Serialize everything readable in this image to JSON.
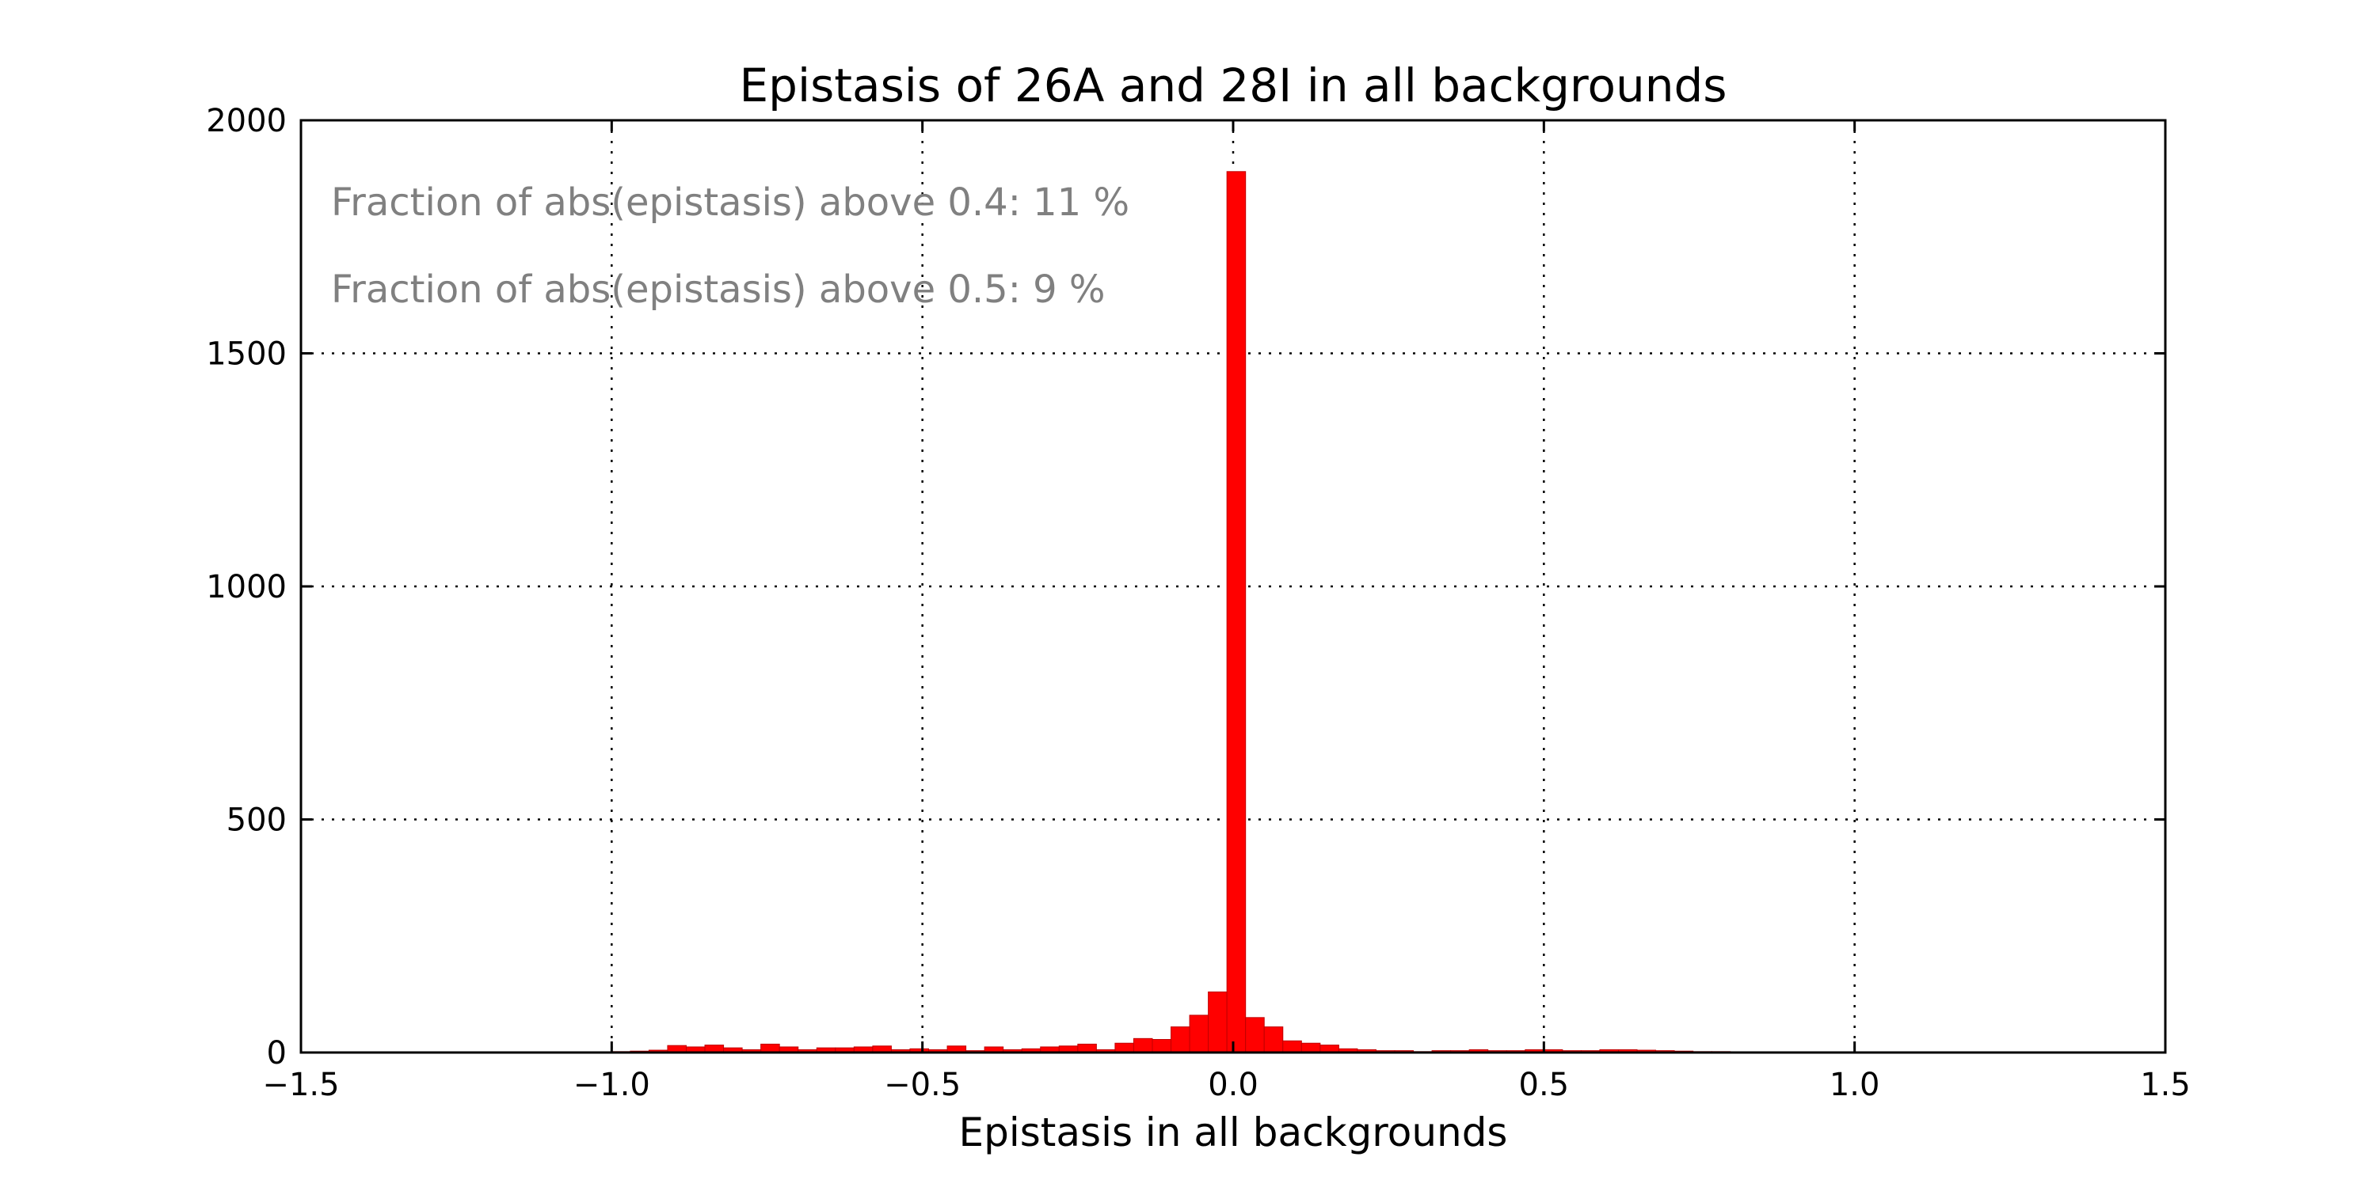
{
  "chart_data": {
    "type": "bar",
    "title": "Epistasis of 26A and 28I in all backgrounds",
    "xlabel": "Epistasis in all backgrounds",
    "ylabel": "",
    "xlim": [
      -1.5,
      1.5
    ],
    "ylim": [
      0,
      2000
    ],
    "grid": true,
    "bar_color": "#ff0000",
    "annotation_color": "#808080",
    "xticks": [
      "−1.5",
      "−1.0",
      "−0.5",
      "0.0",
      "0.5",
      "1.0",
      "1.5"
    ],
    "xtick_values": [
      -1.5,
      -1.0,
      -0.5,
      0.0,
      0.5,
      1.0,
      1.5
    ],
    "yticks": [
      "0",
      "500",
      "1000",
      "1500",
      "2000"
    ],
    "ytick_values": [
      0,
      500,
      1000,
      1500,
      2000
    ],
    "annotations": [
      "Fraction of abs(epistasis) above 0.4: 11 %",
      "Fraction of abs(epistasis) above 0.5: 9 %"
    ],
    "bin_width": 0.03,
    "bin_starts": [
      -1.0,
      -0.97,
      -0.94,
      -0.91,
      -0.88,
      -0.85,
      -0.82,
      -0.79,
      -0.76,
      -0.73,
      -0.7,
      -0.67,
      -0.64,
      -0.61,
      -0.58,
      -0.55,
      -0.52,
      -0.49,
      -0.46,
      -0.43,
      -0.4,
      -0.37,
      -0.34,
      -0.31,
      -0.28,
      -0.25,
      -0.22,
      -0.19,
      -0.16,
      -0.13,
      -0.1,
      -0.07,
      -0.04,
      -0.01,
      0.02,
      0.05,
      0.08,
      0.11,
      0.14,
      0.17,
      0.2,
      0.23,
      0.26,
      0.29,
      0.32,
      0.35,
      0.38,
      0.41,
      0.44,
      0.47,
      0.5,
      0.53,
      0.56,
      0.59,
      0.62,
      0.65,
      0.68,
      0.71,
      0.74,
      0.77
    ],
    "values": [
      2,
      3,
      5,
      15,
      12,
      16,
      10,
      6,
      18,
      12,
      6,
      10,
      10,
      12,
      14,
      6,
      8,
      6,
      14,
      4,
      12,
      6,
      8,
      12,
      14,
      18,
      6,
      20,
      30,
      28,
      55,
      80,
      130,
      1890,
      75,
      55,
      25,
      20,
      16,
      8,
      6,
      4,
      4,
      2,
      4,
      4,
      6,
      4,
      4,
      6,
      6,
      4,
      4,
      6,
      6,
      5,
      4,
      3,
      2,
      2
    ]
  }
}
